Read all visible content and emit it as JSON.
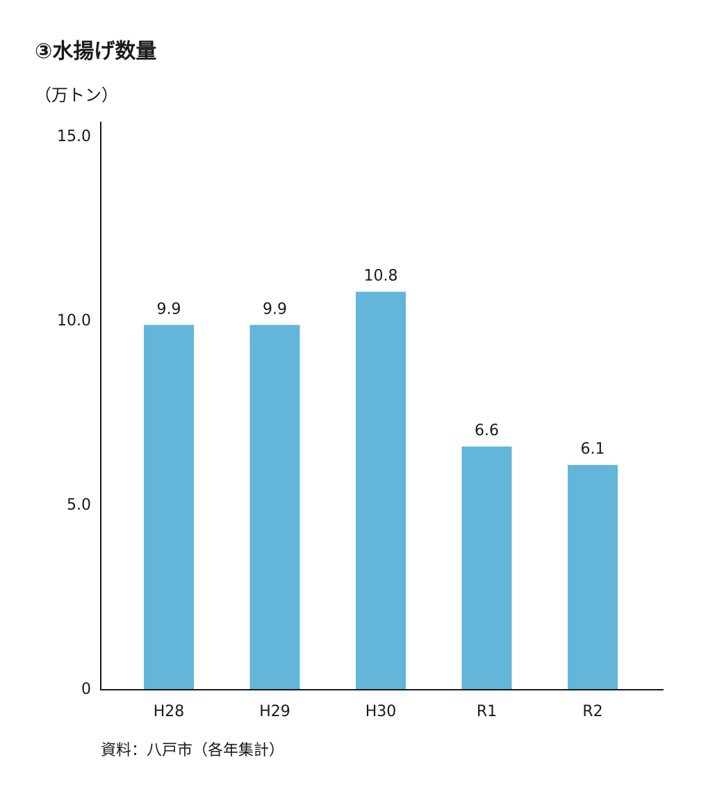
{
  "chart_data": {
    "type": "bar",
    "title": "③水揚げ数量",
    "y_axis_label": "（万トン）",
    "source": "資料：八戸市（各年集計）",
    "categories": [
      "H28",
      "H29",
      "H30",
      "R1",
      "R2"
    ],
    "values": [
      9.9,
      9.9,
      10.8,
      6.6,
      6.1
    ],
    "color": "#63b5d9",
    "ylim": [
      0,
      15
    ],
    "yticks": [
      0,
      {
        "value": 5,
        "label": "5.0"
      },
      {
        "value": 10,
        "label": "10.0"
      },
      {
        "value": 15,
        "label": "15.0"
      }
    ],
    "grid": false
  }
}
